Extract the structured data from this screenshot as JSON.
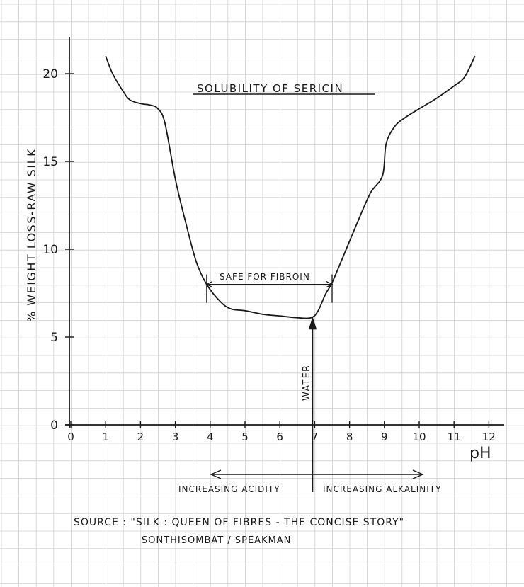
{
  "chart_data": {
    "type": "line",
    "title": "SOLUBILITY OF SERICIN",
    "xlabel": "pH",
    "ylabel": "% WEIGHT LOSS-RAW SILK",
    "xlim": [
      0,
      12
    ],
    "ylim": [
      0,
      22
    ],
    "x_ticks": [
      "0",
      "1",
      "2",
      "3",
      "4",
      "5",
      "6",
      "7",
      "8",
      "9",
      "10",
      "11",
      "12"
    ],
    "y_ticks": [
      "0",
      "5",
      "10",
      "15",
      "20"
    ],
    "grid": true,
    "series": [
      {
        "points": [
          [
            1.0,
            21.0
          ],
          [
            1.2,
            20.0
          ],
          [
            1.5,
            19.0
          ],
          [
            1.7,
            18.5
          ],
          [
            2.0,
            18.3
          ],
          [
            2.3,
            18.2
          ],
          [
            2.5,
            18.0
          ],
          [
            2.7,
            17.2
          ],
          [
            3.0,
            14.0
          ],
          [
            3.3,
            11.5
          ],
          [
            3.6,
            9.3
          ],
          [
            3.9,
            8.0
          ],
          [
            4.3,
            7.0
          ],
          [
            4.6,
            6.6
          ],
          [
            5.0,
            6.5
          ],
          [
            5.5,
            6.3
          ],
          [
            6.0,
            6.2
          ],
          [
            6.5,
            6.1
          ],
          [
            6.9,
            6.1
          ],
          [
            7.1,
            6.5
          ],
          [
            7.3,
            7.4
          ],
          [
            7.5,
            8.1
          ],
          [
            7.8,
            9.5
          ],
          [
            8.2,
            11.4
          ],
          [
            8.6,
            13.2
          ],
          [
            8.95,
            14.2
          ],
          [
            9.05,
            16.0
          ],
          [
            9.3,
            17.0
          ],
          [
            9.6,
            17.5
          ],
          [
            10.0,
            18.0
          ],
          [
            10.5,
            18.6
          ],
          [
            11.0,
            19.3
          ],
          [
            11.3,
            19.8
          ],
          [
            11.6,
            21.0
          ]
        ]
      }
    ],
    "annotations": {
      "safe_label": "SAFE FOR FIBROIN",
      "safe_range": [
        3.9,
        7.5
      ],
      "safe_level": 8.0,
      "water_label": "WATER",
      "water_ph": 6.9,
      "water_value": 6.1,
      "acidity_label": "INCREASING ACIDITY",
      "alkalinity_label": "INCREASING ALKALINITY"
    }
  },
  "source": {
    "line1": "SOURCE : \"SILK : QUEEN OF FIBRES - THE CONCISE STORY\"",
    "line2": "SONTHISOMBAT / SPEAKMAN"
  },
  "colors": {
    "ink": "#1a1a1a",
    "grid": "#cfcfcf"
  }
}
